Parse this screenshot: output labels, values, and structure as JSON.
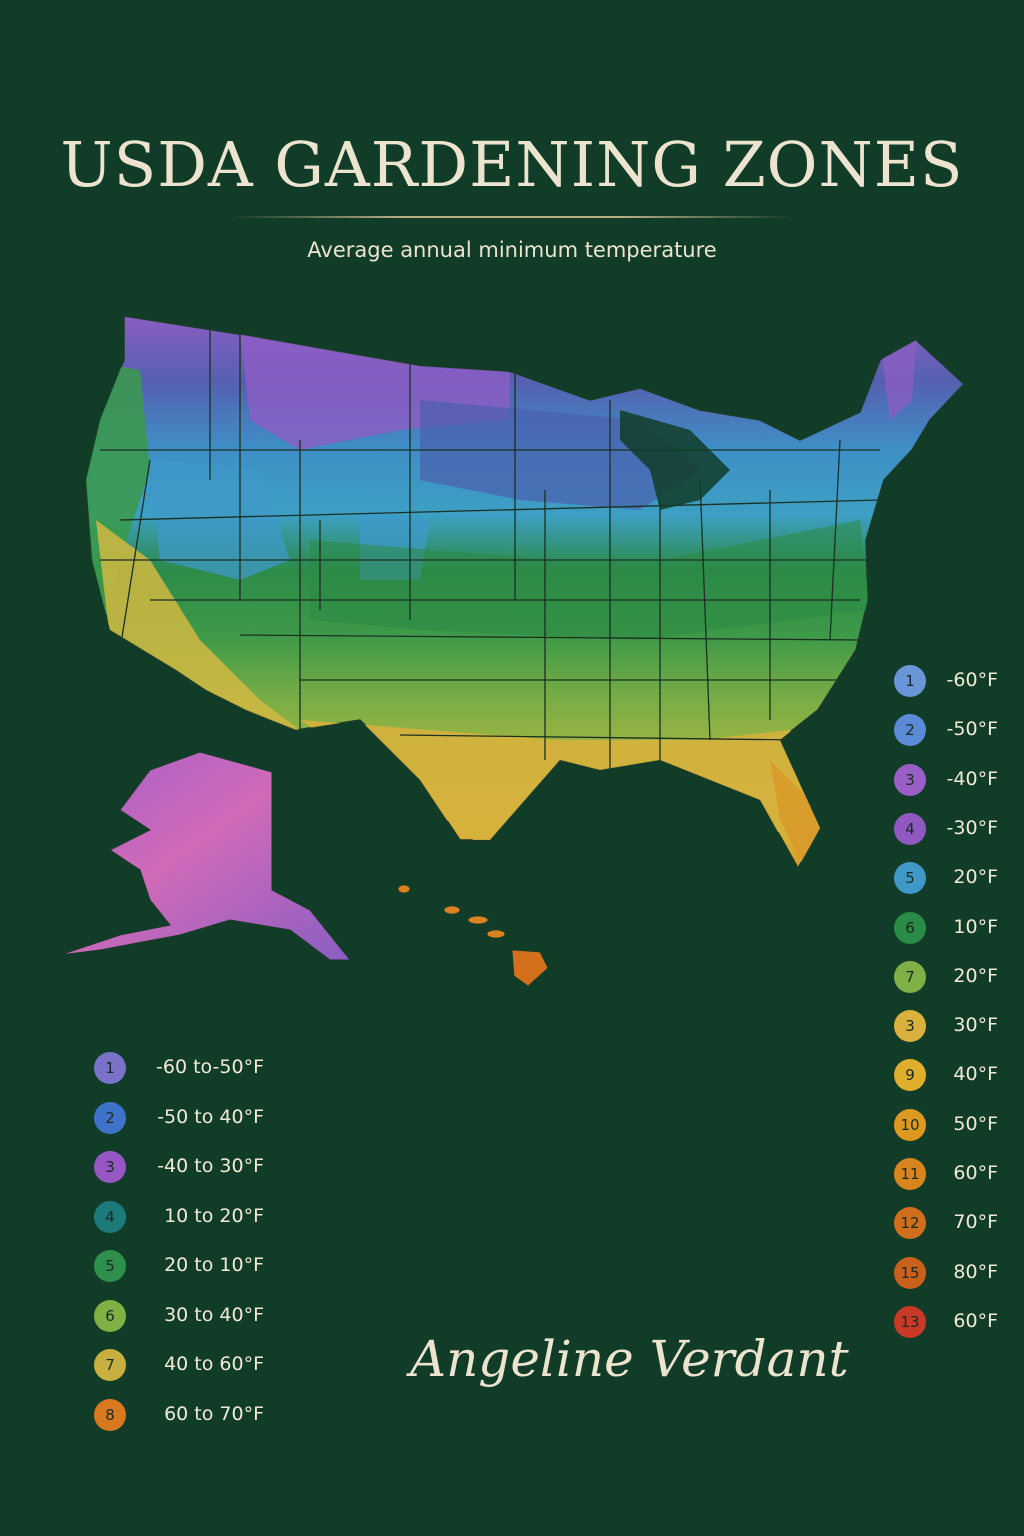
{
  "title": "USDA GARDENING ZONES",
  "subtitle": "Average annual minimum temperature",
  "signature": "Angeline Verdant",
  "colors": {
    "background": "#113d28",
    "text": "#ece4cf"
  },
  "legend_left": [
    {
      "zone": "1",
      "label": "-60 to-50°F",
      "color": "#7a72c8"
    },
    {
      "zone": "2",
      "label": "-50 to 40°F",
      "color": "#3f73c9"
    },
    {
      "zone": "3",
      "label": "-40 to 30°F",
      "color": "#9657c4"
    },
    {
      "zone": "4",
      "label": "10 to 20°F",
      "color": "#1d7a7a"
    },
    {
      "zone": "5",
      "label": "20 to 10°F",
      "color": "#2f8f4c"
    },
    {
      "zone": "6",
      "label": "30 to 40°F",
      "color": "#80b043"
    },
    {
      "zone": "7",
      "label": "40 to 60°F",
      "color": "#c8b040"
    },
    {
      "zone": "8",
      "label": "60 to 70°F",
      "color": "#d9791f"
    }
  ],
  "legend_right": [
    {
      "zone": "1",
      "label": "-60°F",
      "color": "#6a95d8"
    },
    {
      "zone": "2",
      "label": "-50°F",
      "color": "#5b8bd6"
    },
    {
      "zone": "3",
      "label": "-40°F",
      "color": "#9a5fc6"
    },
    {
      "zone": "4",
      "label": "-30°F",
      "color": "#9059c2"
    },
    {
      "zone": "5",
      "label": "20°F",
      "color": "#3f98c8"
    },
    {
      "zone": "6",
      "label": "10°F",
      "color": "#2a8b46"
    },
    {
      "zone": "7",
      "label": "20°F",
      "color": "#7fb046"
    },
    {
      "zone": "3",
      "label": "30°F",
      "color": "#d9b13c"
    },
    {
      "zone": "9",
      "label": "40°F",
      "color": "#dfae2c"
    },
    {
      "zone": "10",
      "label": "50°F",
      "color": "#dd981f"
    },
    {
      "zone": "11",
      "label": "60°F",
      "color": "#d9851f"
    },
    {
      "zone": "12",
      "label": "70°F",
      "color": "#cf6e1d"
    },
    {
      "zone": "15",
      "label": "80°F",
      "color": "#c9601c"
    },
    {
      "zone": "13",
      "label": "60°F",
      "color": "#c83a25"
    }
  ]
}
